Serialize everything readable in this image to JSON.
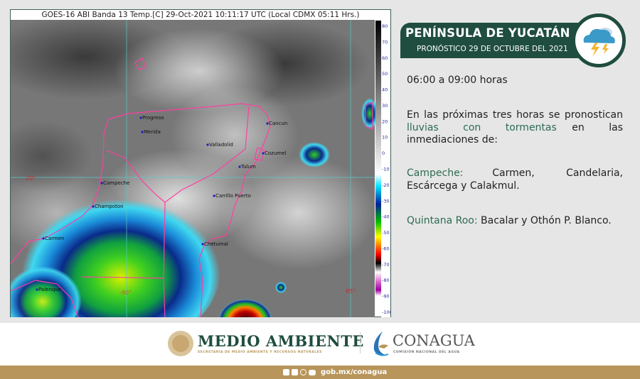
{
  "map": {
    "title": "GOES-16 ABI Banda 13 Temp.[C] 29-Oct-2021 10:11:17 UTC (Local CDMX  05:11 Hrs.)",
    "cities": [
      "Progreso",
      "Merida",
      "Valladolid",
      "Cancun",
      "Cozumel",
      "Tulum",
      "Campeche",
      "Champoton",
      "Carrillo Puerto",
      "Carmen",
      "Chetumal",
      "Palenque"
    ],
    "grid_labels": {
      "lat": "20°",
      "lon_90": "-90°",
      "lon_85": "85°"
    },
    "colorbar": {
      "unit": "°C",
      "labels": [
        "80",
        "70",
        "60",
        "50",
        "40",
        "30",
        "20",
        "10",
        "0",
        "-10",
        "-20",
        "-30",
        "-40",
        "-50",
        "-60",
        "-70",
        "-80",
        "-90",
        "-100"
      ],
      "colors": [
        "#000000",
        "#ffffff",
        "#00e5ff",
        "#0020a0",
        "#00c000",
        "#ffff00",
        "#ff0000",
        "#000000",
        "#ffffff",
        "#a000a0"
      ]
    }
  },
  "banner": {
    "title": "PENÍNSULA DE YUCATÁN",
    "subtitle": "PRONÓSTICO 29 DE OCTUBRE DEL 2021",
    "icon": "storm-cloud-lightning-icon",
    "color": "#1f4d3f"
  },
  "forecast": {
    "time_range": "06:00 a 09:00 horas",
    "intro_1": "En las próximas tres horas se pronostican",
    "intro_highlight": "lluvias con tormentas",
    "intro_2": "en las inmediaciones de:",
    "regions": [
      {
        "state": "Campeche:",
        "places": "Carmen, Candelaria, Escárcega y Calakmul."
      },
      {
        "state": "Quintana Roo:",
        "places": "Bacalar y Othón P. Blanco."
      }
    ],
    "accent": "#2e6b52"
  },
  "footer": {
    "semarnat": "MEDIO AMBIENTE",
    "semarnat_sub": "SECRETARÍA DE MEDIO AMBIENTE Y RECURSOS NATURALES",
    "conagua": "CONAGUA",
    "conagua_sub": "COMISIÓN NACIONAL DEL AGUA",
    "url": "gob.mx/conagua",
    "social_icons": [
      "facebook-icon",
      "twitter-icon",
      "instagram-icon",
      "youtube-icon"
    ],
    "bar_color": "#b8955a"
  }
}
